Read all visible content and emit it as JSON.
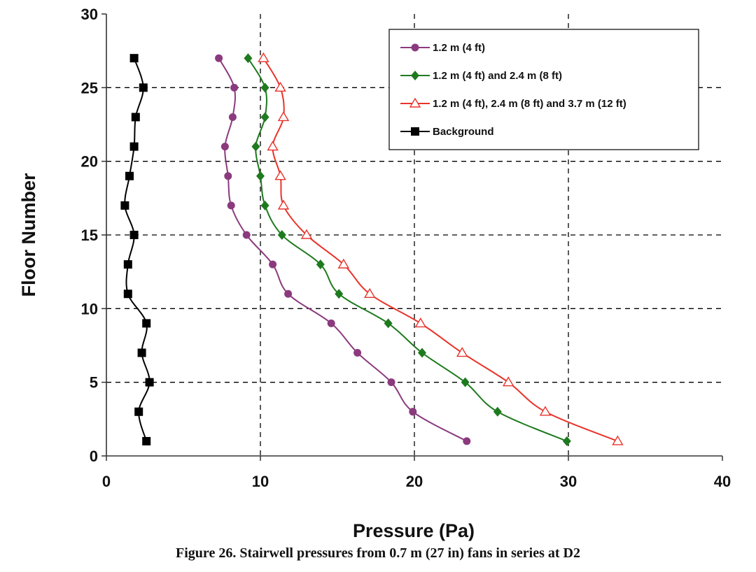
{
  "figure_caption": "Figure 26.  Stairwell pressures from 0.7 m (27 in) fans in series at D2",
  "chart_data": {
    "type": "line",
    "xlabel": "Pressure (Pa)",
    "ylabel": "Floor Number",
    "xlim": [
      0,
      40
    ],
    "ylim": [
      0,
      30
    ],
    "xticks": [
      0,
      10,
      20,
      30,
      40
    ],
    "yticks": [
      0,
      5,
      10,
      15,
      20,
      25,
      30
    ],
    "grid": "dashed at major ticks",
    "legend_position": "top-right",
    "series": [
      {
        "name": "1.2 m (4 ft)",
        "color": "#8B3A7E",
        "marker": "circle",
        "points": [
          [
            7.3,
            27
          ],
          [
            8.3,
            25
          ],
          [
            8.2,
            23
          ],
          [
            7.7,
            21
          ],
          [
            7.9,
            19
          ],
          [
            8.1,
            17
          ],
          [
            9.1,
            15
          ],
          [
            10.8,
            13
          ],
          [
            11.8,
            11
          ],
          [
            14.6,
            9
          ],
          [
            16.3,
            7
          ],
          [
            18.5,
            5
          ],
          [
            19.9,
            3
          ],
          [
            23.4,
            1
          ]
        ]
      },
      {
        "name": "1.2 m (4 ft) and 2.4 m (8 ft)",
        "color": "#1E7A1E",
        "marker": "diamond",
        "points": [
          [
            9.2,
            27
          ],
          [
            10.3,
            25
          ],
          [
            10.3,
            23
          ],
          [
            9.7,
            21
          ],
          [
            10.0,
            19
          ],
          [
            10.3,
            17
          ],
          [
            11.4,
            15
          ],
          [
            13.9,
            13
          ],
          [
            15.1,
            11
          ],
          [
            18.3,
            9
          ],
          [
            20.5,
            7
          ],
          [
            23.3,
            5
          ],
          [
            25.4,
            3
          ],
          [
            29.9,
            1
          ]
        ]
      },
      {
        "name": "1.2 m (4 ft), 2.4 m (8 ft) and 3.7 m (12 ft)",
        "color": "#E8332A",
        "marker": "triangle",
        "points": [
          [
            10.2,
            27
          ],
          [
            11.3,
            25
          ],
          [
            11.5,
            23
          ],
          [
            10.8,
            21
          ],
          [
            11.3,
            19
          ],
          [
            11.5,
            17
          ],
          [
            13.0,
            15
          ],
          [
            15.4,
            13
          ],
          [
            17.1,
            11
          ],
          [
            20.4,
            9
          ],
          [
            23.1,
            7
          ],
          [
            26.1,
            5
          ],
          [
            28.5,
            3
          ],
          [
            33.2,
            1
          ]
        ]
      },
      {
        "name": "Background",
        "color": "#000000",
        "marker": "square",
        "points": [
          [
            1.8,
            27
          ],
          [
            2.4,
            25
          ],
          [
            1.9,
            23
          ],
          [
            1.8,
            21
          ],
          [
            1.5,
            19
          ],
          [
            1.2,
            17
          ],
          [
            1.8,
            15
          ],
          [
            1.4,
            13
          ],
          [
            1.4,
            11
          ],
          [
            2.6,
            9
          ],
          [
            2.3,
            7
          ],
          [
            2.8,
            5
          ],
          [
            2.1,
            3
          ],
          [
            2.6,
            1
          ]
        ]
      }
    ]
  }
}
